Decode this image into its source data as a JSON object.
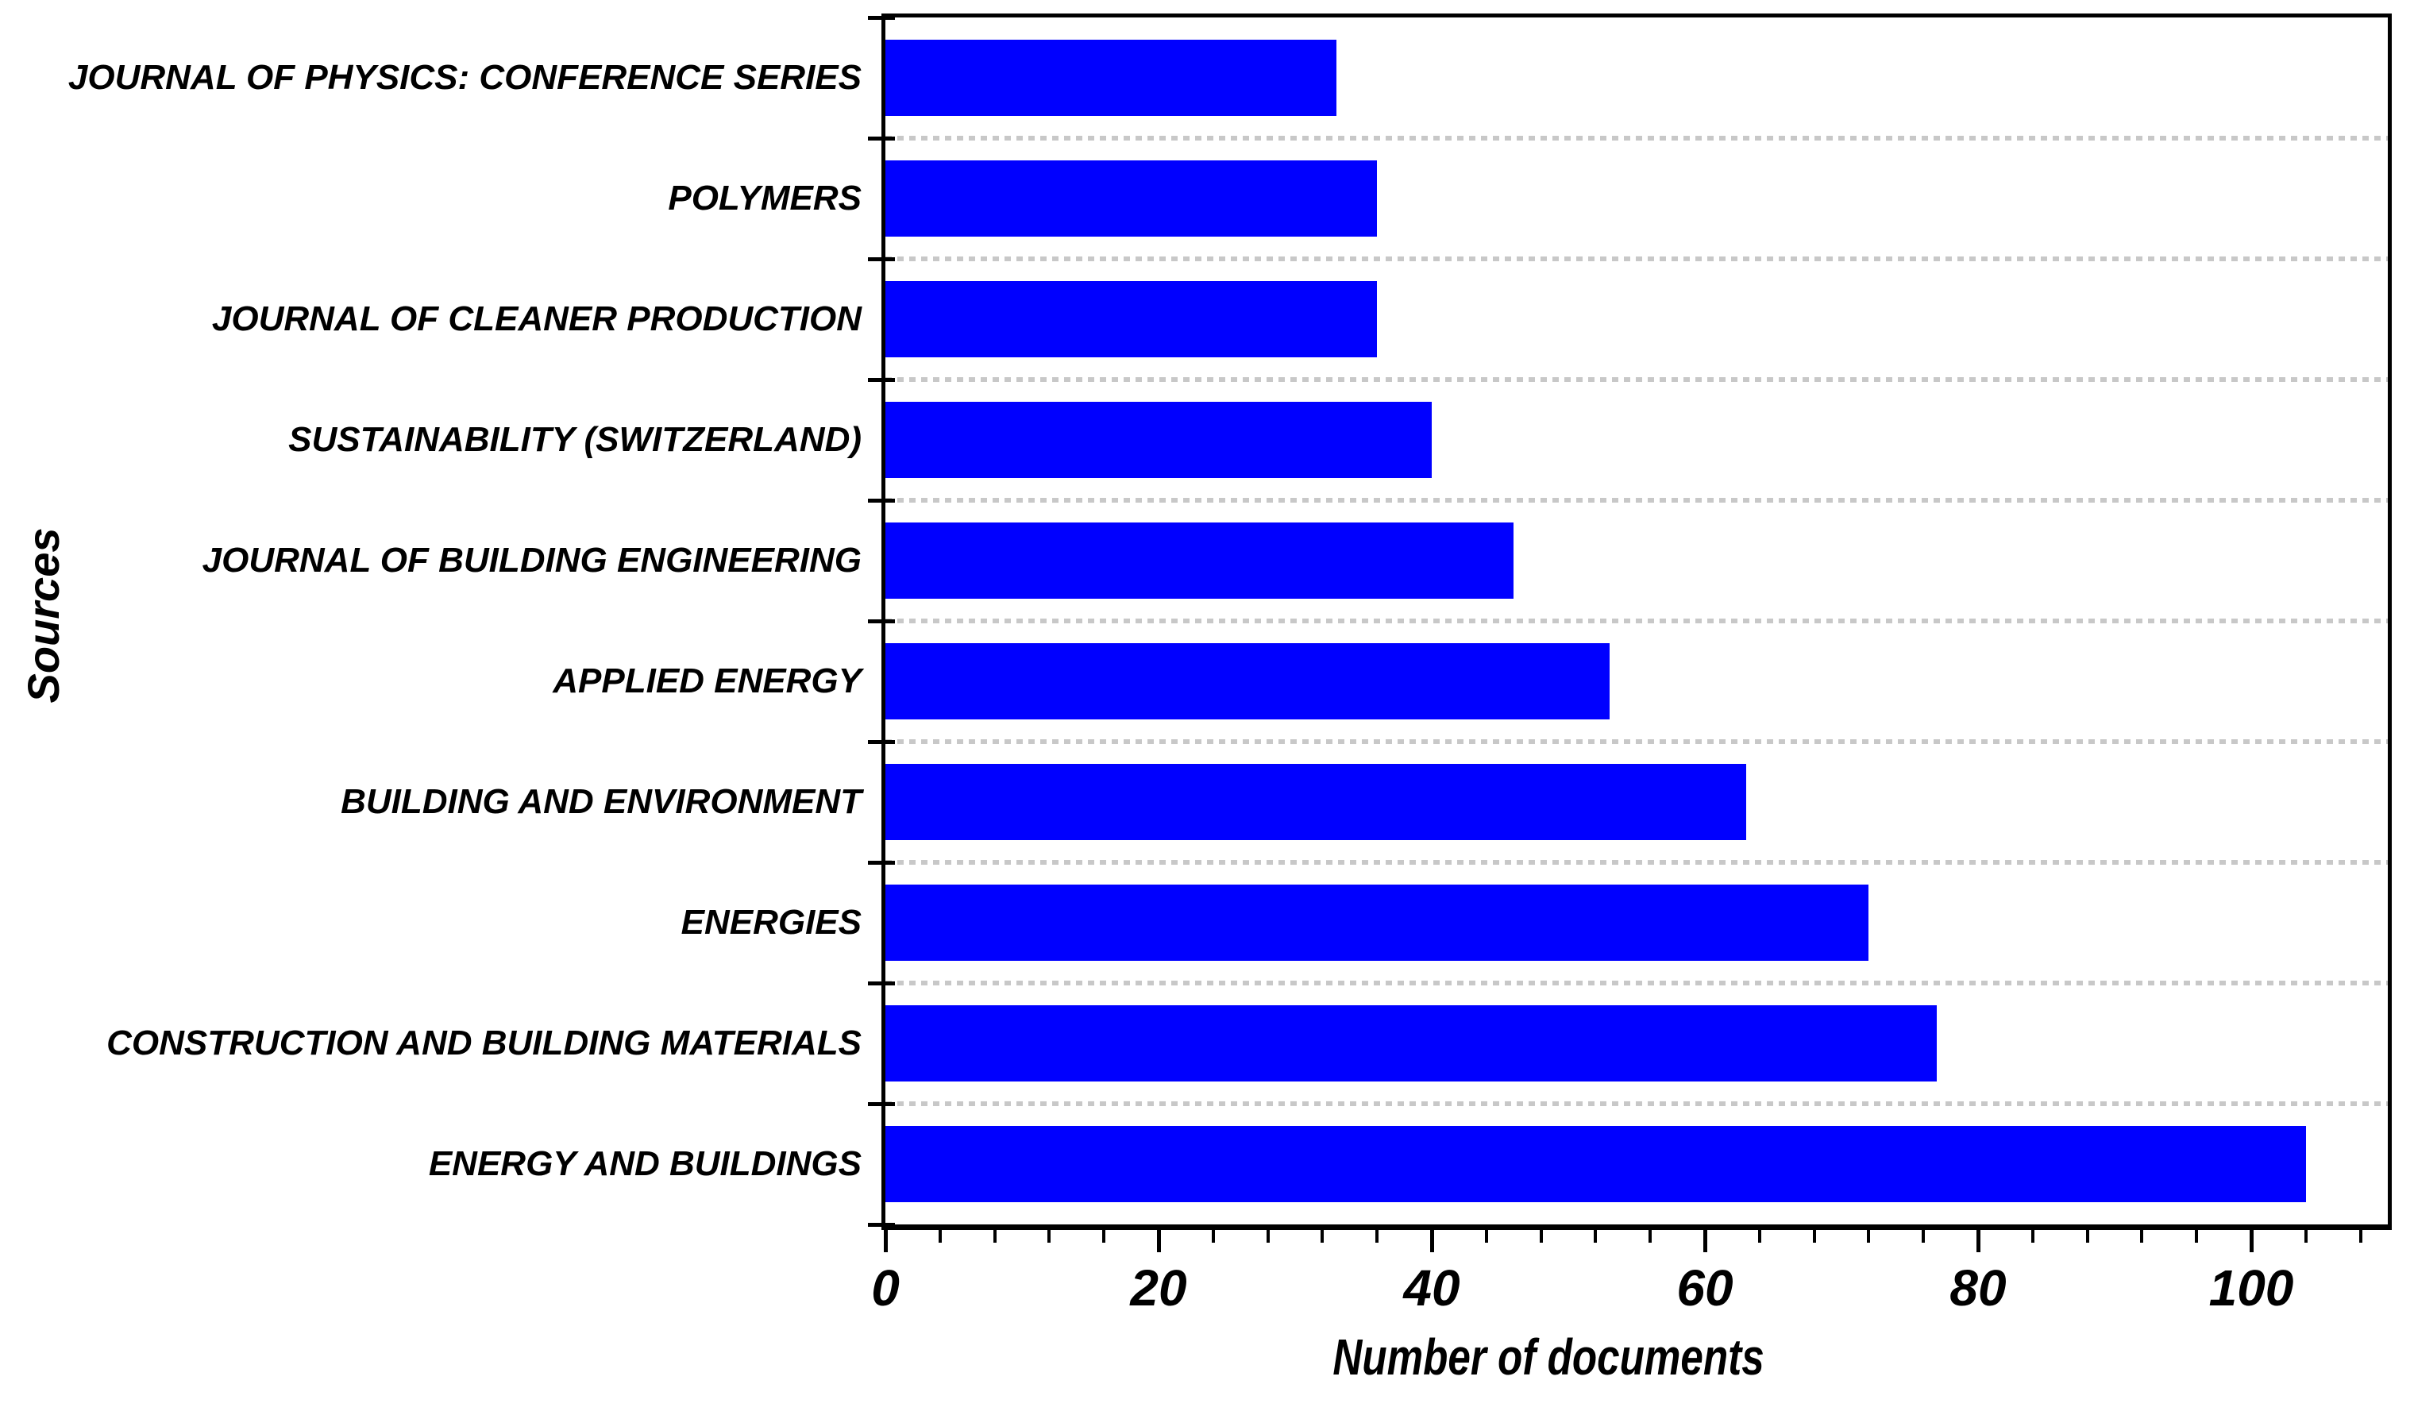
{
  "chart_data": {
    "type": "bar",
    "orientation": "horizontal",
    "title": "",
    "xlabel": "Number of documents",
    "ylabel": "Sources",
    "categories": [
      "JOURNAL OF PHYSICS: CONFERENCE SERIES",
      "POLYMERS",
      "JOURNAL OF CLEANER PRODUCTION",
      "SUSTAINABILITY (SWITZERLAND)",
      "JOURNAL OF BUILDING ENGINEERING",
      "APPLIED ENERGY",
      "BUILDING AND ENVIRONMENT",
      "ENERGIES",
      "CONSTRUCTION AND BUILDING MATERIALS",
      "ENERGY AND BUILDINGS"
    ],
    "values": [
      33,
      36,
      36,
      40,
      46,
      53,
      63,
      72,
      77,
      104
    ],
    "xlim": [
      0,
      110
    ],
    "xticks": [
      0,
      20,
      40,
      60,
      80,
      100
    ],
    "xtick_labels": [
      "0",
      "20",
      "40",
      "60",
      "80",
      "100"
    ],
    "minor_tick_step": 4,
    "grid": "horizontal-dashed",
    "legend": "none",
    "bar_color": "#0000ff",
    "grid_color": "#c8c8c8",
    "axis_color": "#000000",
    "text_color": "#000000",
    "background_color": "#ffffff"
  }
}
